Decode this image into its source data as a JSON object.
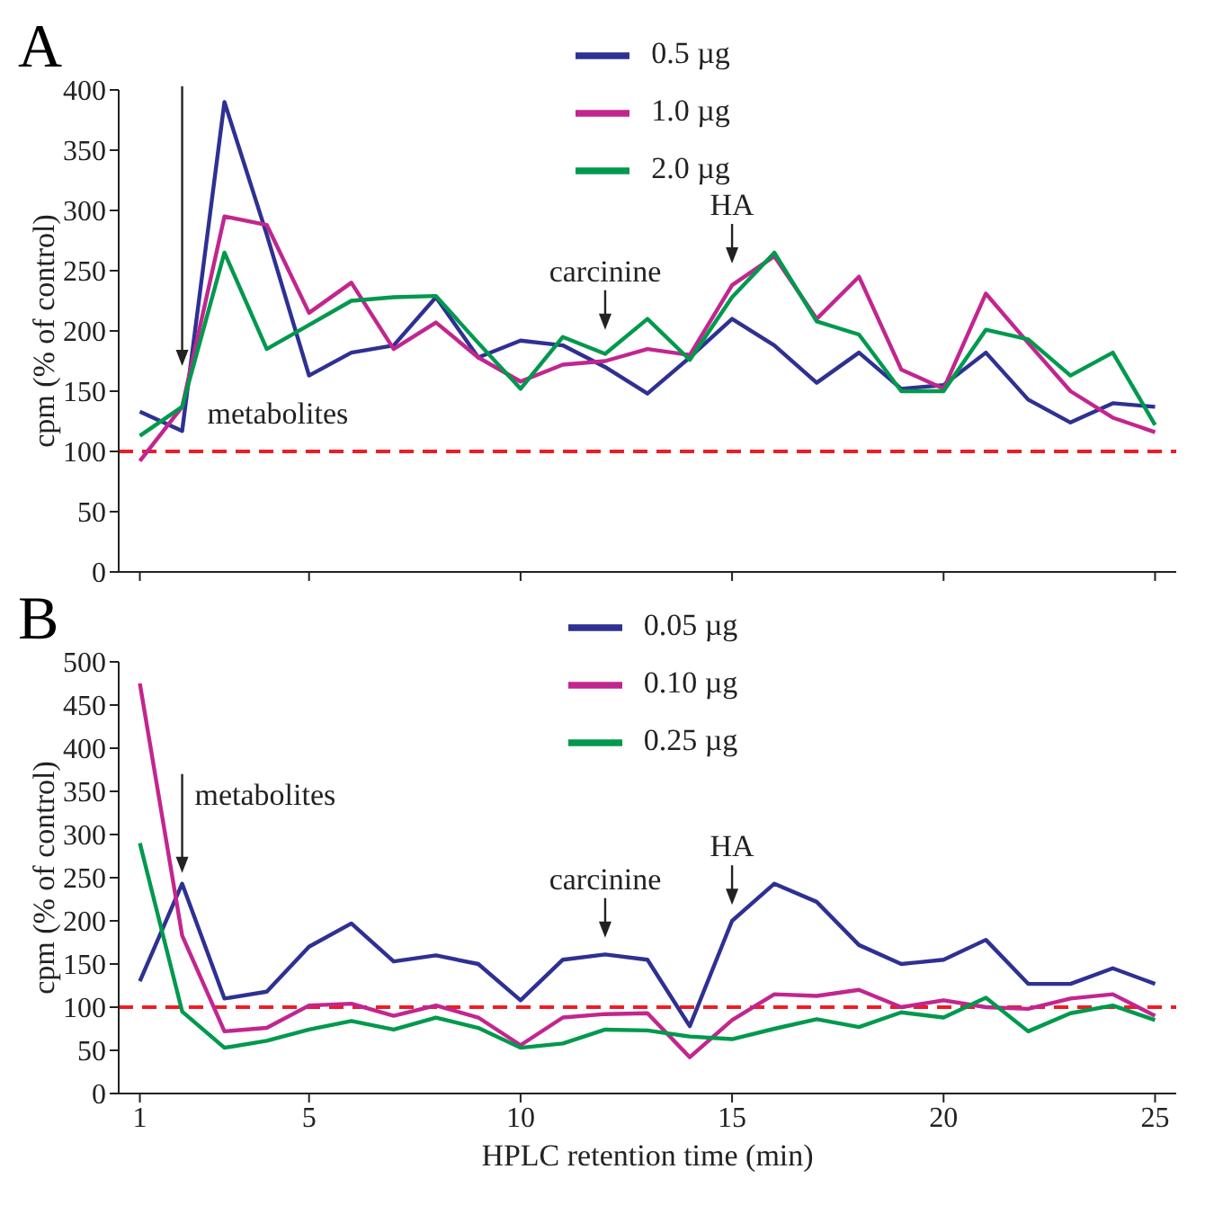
{
  "chart_data": [
    {
      "type": "line",
      "title": "A",
      "ylabel": "cpm (% of control)",
      "x": [
        1,
        2,
        3,
        4,
        5,
        6,
        7,
        8,
        9,
        10,
        11,
        12,
        13,
        14,
        15,
        16,
        17,
        18,
        19,
        20,
        21,
        22,
        23,
        24,
        25
      ],
      "series": [
        {
          "name": "0.5 µg",
          "color": "#2e3192",
          "values": [
            133,
            117,
            390,
            280,
            163,
            182,
            188,
            228,
            178,
            192,
            188,
            170,
            148,
            178,
            210,
            188,
            157,
            182,
            152,
            155,
            182,
            143,
            124,
            140,
            137
          ]
        },
        {
          "name": "1.0 µg",
          "color": "#c2268e",
          "values": [
            92,
            137,
            295,
            288,
            215,
            240,
            185,
            207,
            178,
            158,
            172,
            175,
            185,
            180,
            238,
            262,
            210,
            245,
            168,
            152,
            231,
            190,
            150,
            128,
            116
          ]
        },
        {
          "name": "2.0 µg",
          "color": "#00994d",
          "values": [
            113,
            137,
            265,
            185,
            205,
            225,
            228,
            229,
            190,
            152,
            195,
            181,
            210,
            176,
            228,
            265,
            208,
            197,
            150,
            150,
            201,
            193,
            163,
            182,
            122
          ]
        }
      ],
      "xlim": [
        0.5,
        25.5
      ],
      "xticks": [
        1,
        5,
        10,
        15,
        20,
        25
      ],
      "ylim": [
        0,
        400
      ],
      "yticks": [
        0,
        50,
        100,
        150,
        200,
        250,
        300,
        350,
        400
      ],
      "tick_labels": "y",
      "ref_lines": [
        {
          "axis": "y",
          "value": 100,
          "color": "#ee1c25",
          "line_style": "dashed"
        }
      ],
      "annotations": [
        {
          "text": "metabolites",
          "x": 2,
          "y": 162
        },
        {
          "text": "carcinine",
          "x": 12,
          "y": 192
        },
        {
          "text": "HA",
          "x": 15,
          "y": 247
        }
      ],
      "legend": "top",
      "marker": "none",
      "line_style": "solid",
      "grid": false
    },
    {
      "type": "line",
      "title": "B",
      "ylabel": "cpm (% of control)",
      "xlabel": "HPLC retention time (min)",
      "x": [
        1,
        2,
        3,
        4,
        5,
        6,
        7,
        8,
        9,
        10,
        11,
        12,
        13,
        14,
        15,
        16,
        17,
        18,
        19,
        20,
        21,
        22,
        23,
        24,
        25
      ],
      "series": [
        {
          "name": "0.05 µg",
          "color": "#2e3192",
          "values": [
            130,
            243,
            110,
            118,
            170,
            197,
            153,
            160,
            150,
            108,
            155,
            161,
            155,
            78,
            200,
            243,
            222,
            172,
            150,
            155,
            178,
            127,
            127,
            145,
            127
          ]
        },
        {
          "name": "0.10 µg",
          "color": "#c2268e",
          "values": [
            475,
            183,
            72,
            76,
            102,
            104,
            90,
            102,
            88,
            56,
            88,
            92,
            93,
            42,
            85,
            115,
            113,
            120,
            100,
            108,
            100,
            98,
            110,
            115,
            90
          ]
        },
        {
          "name": "0.25 µg",
          "color": "#00994d",
          "values": [
            290,
            95,
            53,
            61,
            74,
            84,
            74,
            88,
            76,
            53,
            58,
            74,
            73,
            66,
            63,
            75,
            86,
            77,
            94,
            88,
            111,
            72,
            93,
            102,
            85
          ]
        }
      ],
      "xlim": [
        0.5,
        25.5
      ],
      "xticks": [
        1,
        5,
        10,
        15,
        20,
        25
      ],
      "ylim": [
        0,
        500
      ],
      "yticks": [
        0,
        50,
        100,
        150,
        200,
        250,
        300,
        350,
        400,
        450,
        500
      ],
      "ref_lines": [
        {
          "axis": "y",
          "value": 100,
          "color": "#ee1c25",
          "line_style": "dashed"
        }
      ],
      "annotations": [
        {
          "text": "metabolites",
          "x": 2,
          "y": 243
        },
        {
          "text": "carcinine",
          "x": 12,
          "y": 168
        },
        {
          "text": "HA",
          "x": 15,
          "y": 206
        }
      ],
      "legend": "top",
      "marker": "none",
      "line_style": "solid",
      "grid": false
    }
  ]
}
